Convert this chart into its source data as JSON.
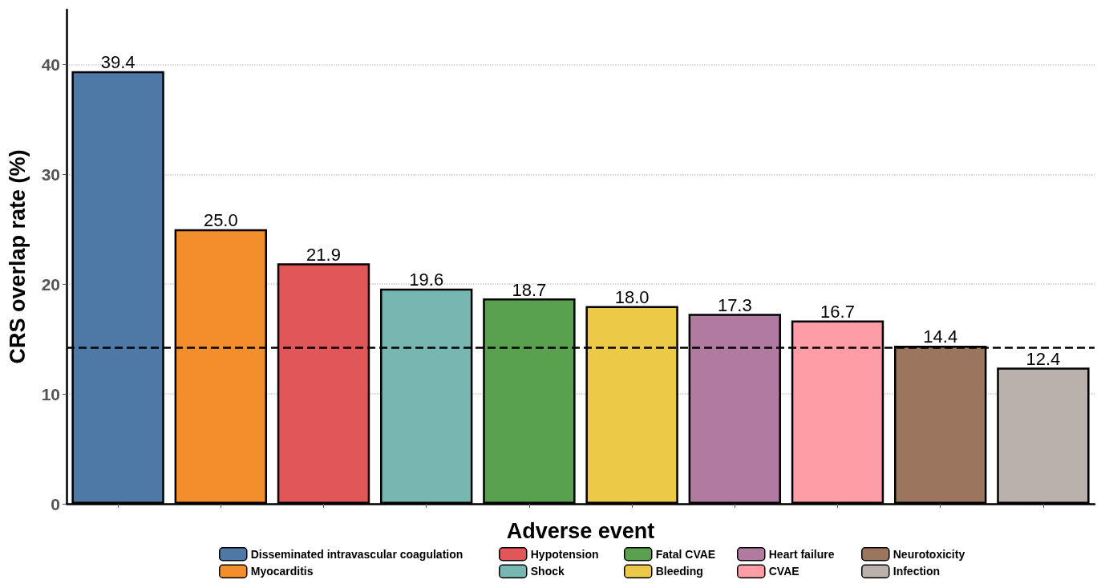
{
  "chart_data": {
    "type": "bar",
    "xlabel": "Adverse event",
    "ylabel": "CRS overlap rate (%)",
    "categories": [
      null,
      null,
      null,
      null,
      null,
      null,
      null,
      null,
      null,
      null
    ],
    "series": [
      {
        "name": "Disseminated intravascular coagulation",
        "color": "#4e79a7",
        "values": [
          39.4,
          null,
          null,
          null,
          null,
          null,
          null,
          null,
          null,
          null
        ],
        "value_labels": [
          "39.4",
          null,
          null,
          null,
          null,
          null,
          null,
          null,
          null,
          null
        ]
      },
      {
        "name": "Myocarditis",
        "color": "#f28e2b",
        "values": [
          null,
          25,
          null,
          null,
          null,
          null,
          null,
          null,
          null,
          null
        ],
        "value_labels": [
          null,
          "25.0",
          null,
          null,
          null,
          null,
          null,
          null,
          null,
          null
        ]
      },
      {
        "name": "Hypotension",
        "color": "#e15759",
        "values": [
          null,
          null,
          21.9,
          null,
          null,
          null,
          null,
          null,
          null,
          null
        ],
        "value_labels": [
          null,
          null,
          "21.9",
          null,
          null,
          null,
          null,
          null,
          null,
          null
        ]
      },
      {
        "name": "Shock",
        "color": "#76b7b2",
        "values": [
          null,
          null,
          null,
          19.6,
          null,
          null,
          null,
          null,
          null,
          null
        ],
        "value_labels": [
          null,
          null,
          null,
          "19.6",
          null,
          null,
          null,
          null,
          null,
          null
        ]
      },
      {
        "name": "Fatal CVAE",
        "color": "#59a14f",
        "values": [
          null,
          null,
          null,
          null,
          18.7,
          null,
          null,
          null,
          null,
          null
        ],
        "value_labels": [
          null,
          null,
          null,
          null,
          "18.7",
          null,
          null,
          null,
          null,
          null
        ]
      },
      {
        "name": "Bleeding",
        "color": "#edc948",
        "values": [
          null,
          null,
          null,
          null,
          null,
          18,
          null,
          null,
          null,
          null
        ],
        "value_labels": [
          null,
          null,
          null,
          null,
          null,
          "18.0",
          null,
          null,
          null,
          null
        ]
      },
      {
        "name": "Heart failure",
        "color": "#b07aa1",
        "values": [
          null,
          null,
          null,
          null,
          null,
          null,
          17.3,
          null,
          null,
          null
        ],
        "value_labels": [
          null,
          null,
          null,
          null,
          null,
          null,
          "17.3",
          null,
          null,
          null
        ]
      },
      {
        "name": "CVAE",
        "color": "#ff9da7",
        "values": [
          null,
          null,
          null,
          null,
          null,
          null,
          null,
          16.7,
          null,
          null
        ],
        "value_labels": [
          null,
          null,
          null,
          null,
          null,
          null,
          null,
          "16.7",
          null,
          null
        ]
      },
      {
        "name": "Neurotoxicity",
        "color": "#9c755f",
        "values": [
          null,
          null,
          null,
          null,
          null,
          null,
          null,
          null,
          14.4,
          null
        ],
        "value_labels": [
          null,
          null,
          null,
          null,
          null,
          null,
          null,
          null,
          "14.4",
          null
        ]
      },
      {
        "name": "Infection",
        "color": "#bab0ac",
        "values": [
          null,
          null,
          null,
          null,
          null,
          null,
          null,
          null,
          null,
          12.4
        ],
        "value_labels": [
          null,
          null,
          null,
          null,
          null,
          null,
          null,
          null,
          null,
          "12.4"
        ]
      }
    ],
    "ylim": [
      0,
      45
    ],
    "yticks": [
      0,
      10,
      20,
      30,
      40
    ],
    "grid": "y",
    "legend": "bottom",
    "tick_labels": "y",
    "ref_lines": [
      {
        "axis": "y",
        "value": 14.2,
        "line_style": "dashed",
        "color": "#000000"
      }
    ]
  }
}
